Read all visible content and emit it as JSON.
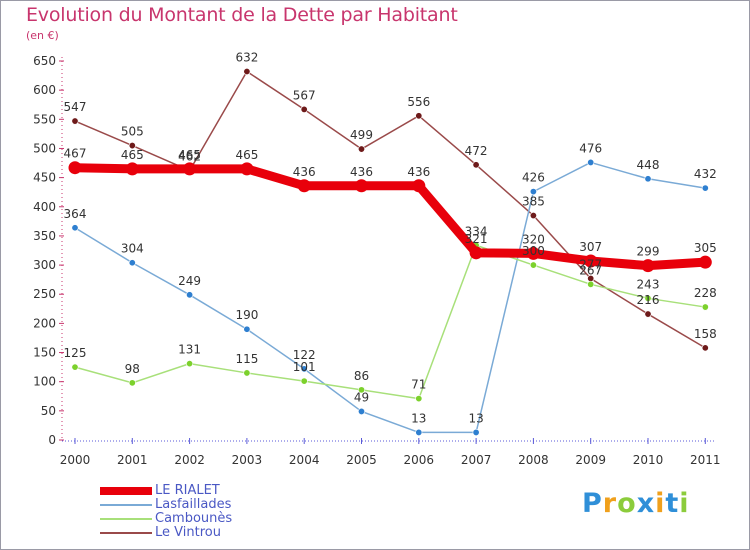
{
  "header": {
    "title": "Evolution du Montant de la Dette par Habitant",
    "subtitle": "(en €)"
  },
  "logo": {
    "letters": [
      "P",
      "r",
      "o",
      "x",
      "i",
      "t",
      "i"
    ],
    "colors": [
      "#2f8fd8",
      "#f0a01c",
      "#8ccc3c",
      "#2f8fd8",
      "#f0a01c",
      "#2f8fd8",
      "#8ccc3c"
    ]
  },
  "chart_data": {
    "type": "line",
    "title": "Evolution du Montant de la Dette par Habitant",
    "subtitle": "(en €)",
    "xlabel": "",
    "ylabel": "",
    "ylim": [
      0,
      650
    ],
    "y_ticks": [
      0,
      50,
      100,
      150,
      200,
      250,
      300,
      350,
      400,
      450,
      500,
      550,
      600,
      650
    ],
    "categories": [
      "2000",
      "2001",
      "2002",
      "2003",
      "2004",
      "2005",
      "2006",
      "2007",
      "2008",
      "2009",
      "2010",
      "2011"
    ],
    "grid": false,
    "legend_position": "bottom-left",
    "series": [
      {
        "name": "LE RIALET",
        "color": "#e8000b",
        "marker": "#e8000b",
        "values": [
          467,
          465,
          465,
          465,
          436,
          436,
          436,
          321,
          320,
          307,
          299,
          305
        ]
      },
      {
        "name": "Lasfaillades",
        "color": "#7aaad6",
        "marker": "#2e7fd0",
        "values": [
          364,
          304,
          249,
          190,
          122,
          49,
          13,
          13,
          426,
          476,
          448,
          432
        ]
      },
      {
        "name": "Cambounès",
        "color": "#a8e07a",
        "marker": "#7cd12c",
        "values": [
          125,
          98,
          131,
          115,
          101,
          86,
          71,
          334,
          300,
          267,
          243,
          228
        ]
      },
      {
        "name": "Le Vintrou",
        "color": "#9a4a4a",
        "marker": "#6e1a1a",
        "values": [
          547,
          505,
          462,
          632,
          567,
          499,
          556,
          472,
          385,
          277,
          216,
          158
        ]
      }
    ],
    "data_labels": [
      {
        "series": "Le Vintrou",
        "labels": [
          "547",
          "505",
          "462",
          "632",
          "567",
          "499",
          "556",
          "472",
          "385",
          "277",
          "216",
          "158"
        ]
      },
      {
        "series": "LE RIALET",
        "labels": [
          "467",
          "465",
          "465",
          "465",
          "436",
          "436",
          "436",
          "321",
          "320",
          "307",
          "299",
          "305"
        ]
      },
      {
        "series": "Lasfaillades",
        "labels": [
          "364",
          "304",
          "249",
          "190",
          "122",
          "49",
          "13",
          "13",
          "426",
          "476",
          "448",
          "432"
        ]
      },
      {
        "series": "Cambounès",
        "labels": [
          "125",
          "98",
          "131",
          "115",
          "101",
          "86",
          "71",
          "334",
          "300",
          "267",
          "243",
          "228"
        ]
      }
    ]
  }
}
